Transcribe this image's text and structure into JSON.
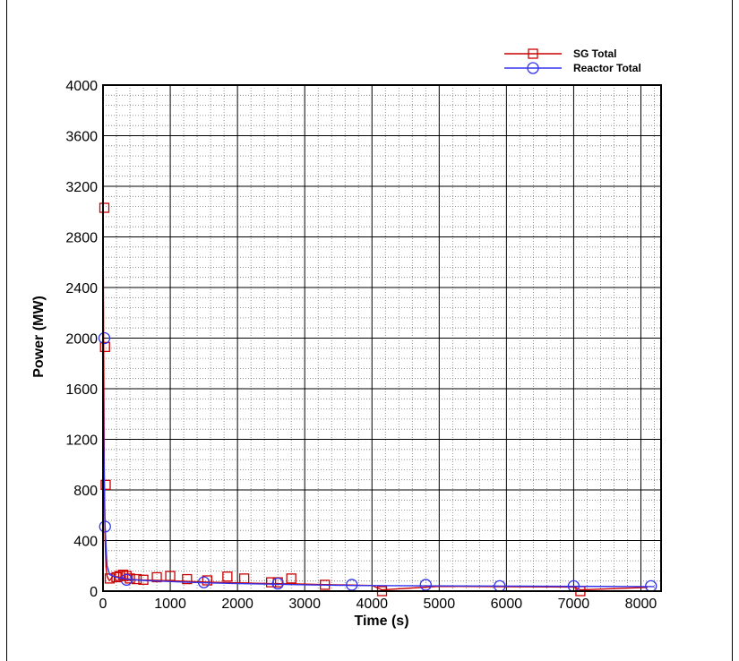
{
  "chart_data": {
    "type": "line",
    "xlabel": "Time (s)",
    "ylabel": "Power (MW)",
    "xlim": [
      0,
      8300
    ],
    "ylim": [
      0,
      4000
    ],
    "x_ticks": [
      0,
      1000,
      2000,
      3000,
      4000,
      5000,
      6000,
      7000,
      8000
    ],
    "y_ticks": [
      0,
      400,
      800,
      1200,
      1600,
      2000,
      2400,
      2800,
      3200,
      3600,
      4000
    ],
    "grid": "major solid, minor dotted",
    "legend_placement": "top-right, above plot",
    "series": [
      {
        "name": "SG Total",
        "color": "#cc0000",
        "marker": "square",
        "line_x": [
          0,
          10,
          20,
          30,
          45,
          60,
          80,
          100,
          150,
          200,
          250,
          300,
          350,
          400,
          500,
          600,
          800,
          1000,
          1200,
          1500,
          1800,
          2100,
          2500,
          2800,
          3300,
          4000,
          4150,
          5000,
          6000,
          7000,
          7100,
          8100
        ],
        "line_y": [
          3030,
          1900,
          820,
          420,
          190,
          120,
          95,
          85,
          120,
          115,
          110,
          105,
          98,
          95,
          90,
          88,
          85,
          82,
          78,
          72,
          68,
          64,
          60,
          58,
          52,
          45,
          10,
          38,
          35,
          32,
          10,
          30
        ],
        "marker_x": [
          20,
          30,
          40,
          100,
          200,
          250,
          300,
          350,
          400,
          500,
          600,
          800,
          1000,
          1250,
          1550,
          1850,
          2100,
          2500,
          2600,
          2800,
          3300,
          4150,
          7100
        ],
        "marker_y": [
          3030,
          1930,
          840,
          100,
          110,
          120,
          130,
          120,
          100,
          95,
          90,
          110,
          120,
          95,
          85,
          115,
          100,
          70,
          70,
          100,
          50,
          0,
          0
        ]
      },
      {
        "name": "Reactor Total",
        "color": "#3333ee",
        "marker": "circle",
        "line_x": [
          0,
          10,
          30,
          60,
          100,
          200,
          300,
          400,
          600,
          800,
          1000,
          1500,
          2000,
          2500,
          3000,
          3700,
          4800,
          5900,
          7000,
          8200
        ],
        "line_y": [
          2000,
          1200,
          520,
          200,
          130,
          110,
          100,
          92,
          85,
          80,
          76,
          66,
          60,
          55,
          50,
          45,
          42,
          40,
          38,
          36
        ],
        "marker_x": [
          20,
          30,
          350,
          1500,
          2600,
          3700,
          4800,
          5900,
          7000,
          8150
        ],
        "marker_y": [
          2000,
          510,
          90,
          70,
          60,
          50,
          50,
          40,
          40,
          40
        ]
      }
    ]
  }
}
